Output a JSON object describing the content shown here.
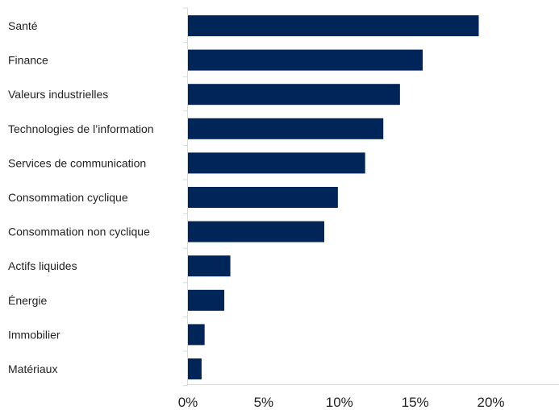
{
  "chart_data": {
    "type": "bar",
    "orientation": "horizontal",
    "categories": [
      "Santé",
      "Finance",
      "Valeurs industrielles",
      "Technologies de l’information",
      "Services de communication",
      "Consommation cyclique",
      "Consommation non cyclique",
      "Actifs liquides",
      "Énergie",
      "Immobilier",
      "Matériaux"
    ],
    "values": [
      19.2,
      15.5,
      14.0,
      12.9,
      11.7,
      9.9,
      9.0,
      2.8,
      2.4,
      1.1,
      0.9
    ],
    "xlim": [
      0,
      24.5
    ],
    "xticks": [
      0,
      5,
      10,
      15,
      20
    ],
    "tick_labels": [
      "0%",
      "5%",
      "10%",
      "15%",
      "20%"
    ],
    "bar_color": "#002559",
    "axis_color": "#d9d9d9",
    "grid": false,
    "title": "",
    "xlabel": "",
    "ylabel": ""
  }
}
